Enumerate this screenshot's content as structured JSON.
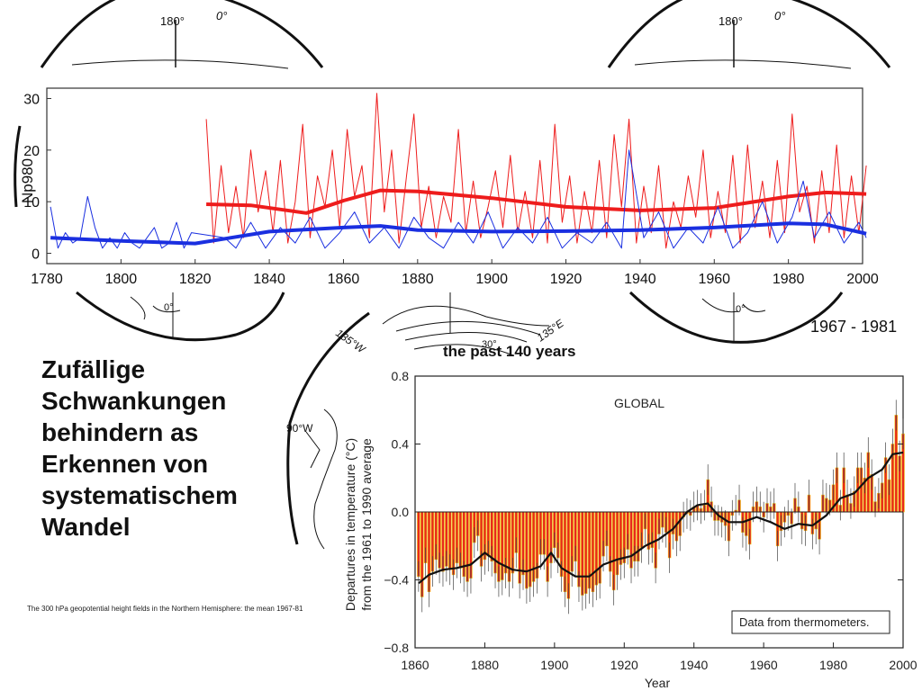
{
  "slide": {
    "title_lines": [
      "Zufällige",
      "Schwankungen",
      "behindern as",
      "Erkennen von",
      "systematischem",
      "Wandel"
    ],
    "caption": "The 300 hPa geopotential height fields in the Northern Hemisphere: the mean 1967-81",
    "period_label": "1967 - 1981",
    "past_label": "the past 140 years"
  },
  "map_labels": {
    "lon_180": "180°",
    "lon_0_top": "0°",
    "lon_0_bottom": "0°",
    "lon_135w": "135°W",
    "lon_135e": "135°E",
    "lon_90w": "90°W",
    "lon_30": "30°"
  },
  "colors": {
    "red": "#ee1c1c",
    "blue": "#1a2fe0",
    "bar_fill": "#e8291c",
    "bar_edge": "#f2c811"
  },
  "chart_data": [
    {
      "type": "line",
      "ylabel": "Np980",
      "xlim": [
        1780,
        2000
      ],
      "ylim": [
        -2,
        32
      ],
      "x_ticks": [
        1780,
        1800,
        1820,
        1840,
        1860,
        1880,
        1900,
        1920,
        1940,
        1960,
        1980,
        2000
      ],
      "y_ticks": [
        0,
        10,
        20,
        30
      ],
      "series": [
        {
          "color": "red",
          "role": "annual",
          "x": [
            1823,
            1825,
            1827,
            1829,
            1831,
            1833,
            1835,
            1837,
            1839,
            1841,
            1843,
            1845,
            1847,
            1849,
            1851,
            1853,
            1855,
            1857,
            1859,
            1861,
            1863,
            1865,
            1867,
            1869,
            1871,
            1873,
            1875,
            1877,
            1879,
            1881,
            1883,
            1885,
            1887,
            1889,
            1891,
            1893,
            1895,
            1897,
            1899,
            1901,
            1903,
            1905,
            1907,
            1909,
            1911,
            1913,
            1915,
            1917,
            1919,
            1921,
            1923,
            1925,
            1927,
            1929,
            1931,
            1933,
            1935,
            1937,
            1939,
            1941,
            1943,
            1945,
            1947,
            1949,
            1951,
            1953,
            1955,
            1957,
            1959,
            1961,
            1963,
            1965,
            1967,
            1969,
            1971,
            1973,
            1975,
            1977,
            1979,
            1981,
            1983,
            1985,
            1987,
            1989,
            1991,
            1993,
            1995,
            1997,
            1999,
            2001
          ],
          "y": [
            26,
            2,
            17,
            4,
            13,
            3,
            20,
            8,
            16,
            4,
            18,
            2,
            10,
            25,
            3,
            15,
            9,
            20,
            5,
            24,
            11,
            17,
            3,
            31,
            8,
            20,
            2,
            15,
            27,
            5,
            13,
            3,
            11,
            6,
            24,
            4,
            14,
            3,
            9,
            16,
            5,
            19,
            4,
            12,
            3,
            18,
            2,
            25,
            6,
            15,
            2,
            12,
            4,
            18,
            3,
            23,
            9,
            26,
            2,
            13,
            4,
            17,
            1,
            10,
            5,
            15,
            7,
            20,
            3,
            12,
            4,
            19,
            2,
            21,
            5,
            14,
            3,
            18,
            4,
            27,
            8,
            13,
            2,
            16,
            4,
            21,
            3,
            15,
            4,
            17
          ]
        },
        {
          "color": "red",
          "role": "smoothed",
          "x": [
            1823,
            1835,
            1850,
            1860,
            1870,
            1880,
            1900,
            1920,
            1940,
            1960,
            1980,
            1990,
            2001
          ],
          "y": [
            9.5,
            9.3,
            7.8,
            10.2,
            12.2,
            12.0,
            10.7,
            9.0,
            8.3,
            8.8,
            11.0,
            11.8,
            11.5
          ]
        },
        {
          "color": "blue",
          "role": "annual",
          "x": [
            1781,
            1783,
            1785,
            1787,
            1789,
            1791,
            1793,
            1795,
            1797,
            1799,
            1801,
            1803,
            1805,
            1807,
            1809,
            1811,
            1813,
            1815,
            1817,
            1819,
            1828,
            1831,
            1835,
            1839,
            1843,
            1847,
            1851,
            1855,
            1859,
            1863,
            1867,
            1871,
            1875,
            1879,
            1883,
            1887,
            1891,
            1895,
            1899,
            1903,
            1907,
            1911,
            1915,
            1919,
            1923,
            1927,
            1931,
            1935,
            1937,
            1941,
            1945,
            1949,
            1953,
            1957,
            1961,
            1965,
            1969,
            1973,
            1977,
            1981,
            1984,
            1987,
            1991,
            1995,
            1999,
            2001
          ],
          "y": [
            9,
            1,
            4,
            2,
            3,
            11,
            5,
            1,
            3,
            1,
            4,
            2,
            1,
            3,
            5,
            1,
            2,
            6,
            1,
            4,
            3,
            1,
            6,
            1,
            5,
            2,
            7,
            1,
            4,
            8,
            2,
            5,
            1,
            7,
            3,
            1,
            6,
            2,
            8,
            1,
            5,
            2,
            7,
            1,
            4,
            2,
            6,
            1,
            20,
            3,
            8,
            1,
            5,
            2,
            9,
            1,
            4,
            10,
            2,
            7,
            14,
            3,
            8,
            2,
            6,
            3
          ]
        },
        {
          "color": "blue",
          "role": "smoothed",
          "x": [
            1781,
            1800,
            1820,
            1840,
            1860,
            1870,
            1880,
            1900,
            1920,
            1940,
            1960,
            1980,
            1990,
            2001
          ],
          "y": [
            3.0,
            2.4,
            1.9,
            4.2,
            5.0,
            5.3,
            4.5,
            4.2,
            4.3,
            4.5,
            5.0,
            5.8,
            5.6,
            3.8
          ]
        }
      ]
    },
    {
      "type": "bar",
      "title": "GLOBAL",
      "xlabel": "Year",
      "ylabel_lines": [
        "Departures in temperature (°C)",
        "from the 1961 to 1990 average"
      ],
      "annotation": "Data from thermometers.",
      "xlim": [
        1860,
        2000
      ],
      "ylim": [
        -0.8,
        0.8
      ],
      "x_ticks": [
        1860,
        1880,
        1900,
        1920,
        1940,
        1960,
        1980,
        2000
      ],
      "y_ticks": [
        0.8,
        0.4,
        0.0,
        -0.4,
        -0.8
      ],
      "y_tick_labels": [
        "0.8",
        "0.4",
        "0.0",
        "−0.4",
        "−0.8"
      ],
      "years": [
        1861,
        1862,
        1863,
        1864,
        1865,
        1866,
        1867,
        1868,
        1869,
        1870,
        1871,
        1872,
        1873,
        1874,
        1875,
        1876,
        1877,
        1878,
        1879,
        1880,
        1881,
        1882,
        1883,
        1884,
        1885,
        1886,
        1887,
        1888,
        1889,
        1890,
        1891,
        1892,
        1893,
        1894,
        1895,
        1896,
        1897,
        1898,
        1899,
        1900,
        1901,
        1902,
        1903,
        1904,
        1905,
        1906,
        1907,
        1908,
        1909,
        1910,
        1911,
        1912,
        1913,
        1914,
        1915,
        1916,
        1917,
        1918,
        1919,
        1920,
        1921,
        1922,
        1923,
        1924,
        1925,
        1926,
        1927,
        1928,
        1929,
        1930,
        1931,
        1932,
        1933,
        1934,
        1935,
        1936,
        1937,
        1938,
        1939,
        1940,
        1941,
        1942,
        1943,
        1944,
        1945,
        1946,
        1947,
        1948,
        1949,
        1950,
        1951,
        1952,
        1953,
        1954,
        1955,
        1956,
        1957,
        1958,
        1959,
        1960,
        1961,
        1962,
        1963,
        1964,
        1965,
        1966,
        1967,
        1968,
        1969,
        1970,
        1971,
        1972,
        1973,
        1974,
        1975,
        1976,
        1977,
        1978,
        1979,
        1980,
        1981,
        1982,
        1983,
        1984,
        1985,
        1986,
        1987,
        1988,
        1989,
        1990,
        1991,
        1992,
        1993,
        1994,
        1995,
        1996,
        1997,
        1998,
        1999,
        2000
      ],
      "values": [
        -0.38,
        -0.5,
        -0.3,
        -0.47,
        -0.35,
        -0.28,
        -0.33,
        -0.35,
        -0.32,
        -0.34,
        -0.37,
        -0.3,
        -0.33,
        -0.38,
        -0.41,
        -0.39,
        -0.18,
        -0.14,
        -0.32,
        -0.28,
        -0.26,
        -0.29,
        -0.36,
        -0.41,
        -0.4,
        -0.36,
        -0.41,
        -0.36,
        -0.24,
        -0.42,
        -0.37,
        -0.45,
        -0.44,
        -0.41,
        -0.39,
        -0.25,
        -0.25,
        -0.41,
        -0.3,
        -0.21,
        -0.27,
        -0.38,
        -0.47,
        -0.51,
        -0.35,
        -0.29,
        -0.44,
        -0.49,
        -0.48,
        -0.45,
        -0.47,
        -0.43,
        -0.42,
        -0.26,
        -0.2,
        -0.35,
        -0.46,
        -0.37,
        -0.31,
        -0.3,
        -0.22,
        -0.33,
        -0.29,
        -0.29,
        -0.21,
        -0.1,
        -0.22,
        -0.21,
        -0.33,
        -0.13,
        -0.09,
        -0.12,
        -0.27,
        -0.13,
        -0.17,
        -0.14,
        -0.03,
        -0.01,
        -0.02,
        0.03,
        0.04,
        0.02,
        0.04,
        0.19,
        0.06,
        -0.05,
        -0.05,
        -0.06,
        -0.08,
        -0.17,
        -0.02,
        0.01,
        0.07,
        -0.12,
        -0.14,
        -0.19,
        0.03,
        0.06,
        0.03,
        -0.03,
        0.05,
        0.03,
        0.05,
        -0.2,
        -0.11,
        -0.06,
        -0.02,
        -0.07,
        0.08,
        0.03,
        -0.1,
        -0.11,
        0.1,
        -0.13,
        -0.1,
        -0.16,
        0.1,
        0.08,
        0.07,
        0.16,
        0.26,
        0.04,
        0.26,
        0.1,
        0.05,
        0.12,
        0.26,
        0.26,
        0.2,
        0.35,
        0.22,
        0.06,
        0.11,
        0.17,
        0.32,
        0.19,
        0.4,
        0.57,
        0.33,
        0.46
      ],
      "smooth": [
        [
          1861,
          -0.42
        ],
        [
          1864,
          -0.37
        ],
        [
          1868,
          -0.34
        ],
        [
          1872,
          -0.33
        ],
        [
          1876,
          -0.31
        ],
        [
          1880,
          -0.24
        ],
        [
          1884,
          -0.3
        ],
        [
          1888,
          -0.34
        ],
        [
          1892,
          -0.35
        ],
        [
          1896,
          -0.32
        ],
        [
          1899,
          -0.24
        ],
        [
          1902,
          -0.33
        ],
        [
          1906,
          -0.38
        ],
        [
          1910,
          -0.38
        ],
        [
          1914,
          -0.31
        ],
        [
          1918,
          -0.28
        ],
        [
          1922,
          -0.26
        ],
        [
          1926,
          -0.2
        ],
        [
          1930,
          -0.16
        ],
        [
          1934,
          -0.1
        ],
        [
          1938,
          0.0
        ],
        [
          1941,
          0.04
        ],
        [
          1944,
          0.05
        ],
        [
          1947,
          -0.02
        ],
        [
          1950,
          -0.06
        ],
        [
          1954,
          -0.06
        ],
        [
          1958,
          -0.03
        ],
        [
          1962,
          -0.06
        ],
        [
          1966,
          -0.1
        ],
        [
          1970,
          -0.07
        ],
        [
          1974,
          -0.08
        ],
        [
          1978,
          -0.02
        ],
        [
          1982,
          0.08
        ],
        [
          1986,
          0.11
        ],
        [
          1990,
          0.2
        ],
        [
          1994,
          0.25
        ],
        [
          1997,
          0.34
        ],
        [
          2000,
          0.35
        ]
      ]
    }
  ]
}
